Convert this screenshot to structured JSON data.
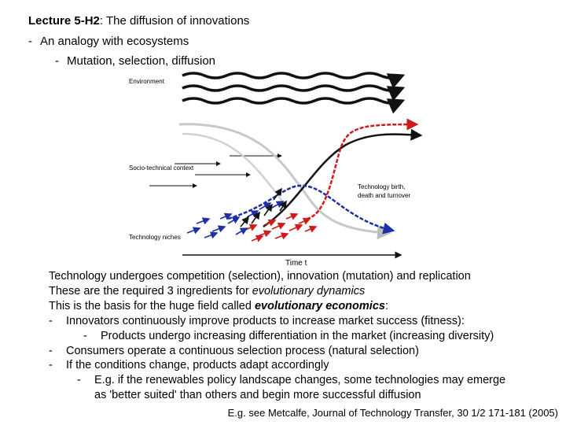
{
  "title": {
    "bold": "Lecture 5-H2",
    "rest": ": The diffusion of innovations"
  },
  "bullets": {
    "level1": "An analogy with ecosystems",
    "level2": "Mutation, selection, diffusion"
  },
  "dash": "-",
  "figure": {
    "environment_label": "Environment",
    "context_label": "Socio-technical context",
    "birth_label_1": "Technology birth,",
    "birth_label_2": "death and turnover",
    "niches_label": "Technology niches",
    "axis_label": "Time t",
    "colors": {
      "red": "#d11a1a",
      "blue": "#1e2fa6",
      "gray": "#c8c8c8",
      "black": "#111111"
    }
  },
  "body": {
    "line1": "Technology undergoes competition (selection), innovation (mutation) and replication",
    "line2_pre": "These are the required 3 ingredients for ",
    "line2_em": "evolutionary dynamics",
    "line3_pre": "This is the basis for the huge field called ",
    "line3_em": "evolutionary economics",
    "line3_post": ":",
    "item1": "Innovators continuously improve products to increase market success (fitness):",
    "item1_sub": "Products undergo increasing differentiation in the market (increasing diversity)",
    "item2": "Consumers operate a continuous selection process (natural selection)",
    "item3": "If the conditions change, products adapt accordingly",
    "item3_sub1": "E.g. if the renewables policy landscape changes, some technologies may emerge",
    "item3_sub2": "as 'better suited' than others and begin more successful diffusion"
  },
  "reference": "E.g. see Metcalfe, Journal of Technology Transfer, 30 1/2 171-181 (2005)"
}
